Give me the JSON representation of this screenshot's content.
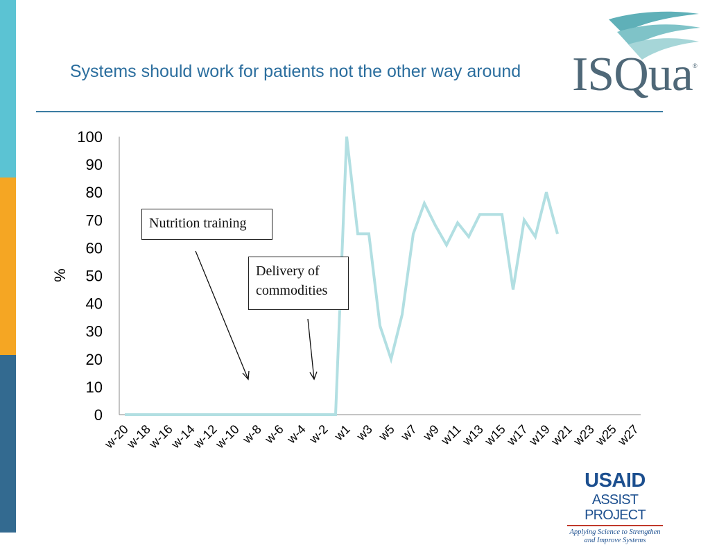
{
  "slide": {
    "title": "Systems should work for patients not the other way around",
    "isqua_logo_text": "ISQua",
    "isqua_logo_mark": "®",
    "usaid_logo": {
      "main": "USAID",
      "sub": "ASSIST PROJECT",
      "tagline_1": "Applying Science to Strengthen",
      "tagline_2": "and Improve Systems"
    },
    "annotations": {
      "nutrition_training": "Nutrition training",
      "delivery_line_1": "Delivery of",
      "delivery_line_2": "commodities"
    },
    "colors": {
      "title": "#2b6e9e",
      "series": "#b2dfe2",
      "bar_top": "#5bc3d3",
      "bar_middle": "#f5a623",
      "bar_bottom": "#336a90"
    }
  },
  "chart_data": {
    "type": "line",
    "ylabel": "%",
    "ylim": [
      0,
      100
    ],
    "yticks": [
      0,
      10,
      20,
      30,
      40,
      50,
      60,
      70,
      80,
      90,
      100
    ],
    "x": [
      "w-20",
      "w-19",
      "w-18",
      "w-17",
      "w-16",
      "w-15",
      "w-14",
      "w-13",
      "w-12",
      "w-11",
      "w-10",
      "w-9",
      "w-8",
      "w-7",
      "w-6",
      "w-5",
      "w-4",
      "w-3",
      "w-2",
      "w-1",
      "w1",
      "w2",
      "w3",
      "w4",
      "w5",
      "w6",
      "w7",
      "w8",
      "w9",
      "w10",
      "w11",
      "w12",
      "w13",
      "w14",
      "w15",
      "w16",
      "w17",
      "w18",
      "w19",
      "w20",
      "w21",
      "w22",
      "w23",
      "w24",
      "w25",
      "w26",
      "w27"
    ],
    "xtick_labels": [
      "w-20",
      "w-18",
      "w-16",
      "w-14",
      "w-12",
      "w-10",
      "w-8",
      "w-6",
      "w-4",
      "w-2",
      "w1",
      "w3",
      "w5",
      "w7",
      "w9",
      "w11",
      "w13",
      "w15",
      "w17",
      "w19",
      "w21",
      "w23",
      "w25",
      "w27"
    ],
    "series": [
      {
        "values": [
          0,
          0,
          0,
          0,
          0,
          0,
          0,
          0,
          0,
          0,
          0,
          0,
          0,
          0,
          0,
          0,
          0,
          0,
          0,
          0,
          100,
          65,
          65,
          32,
          20,
          36,
          65,
          76,
          68,
          61,
          69,
          64,
          72,
          72,
          72,
          45,
          70,
          64,
          80,
          65,
          null,
          null,
          null,
          null,
          null,
          null,
          null
        ]
      }
    ],
    "grid": false
  }
}
